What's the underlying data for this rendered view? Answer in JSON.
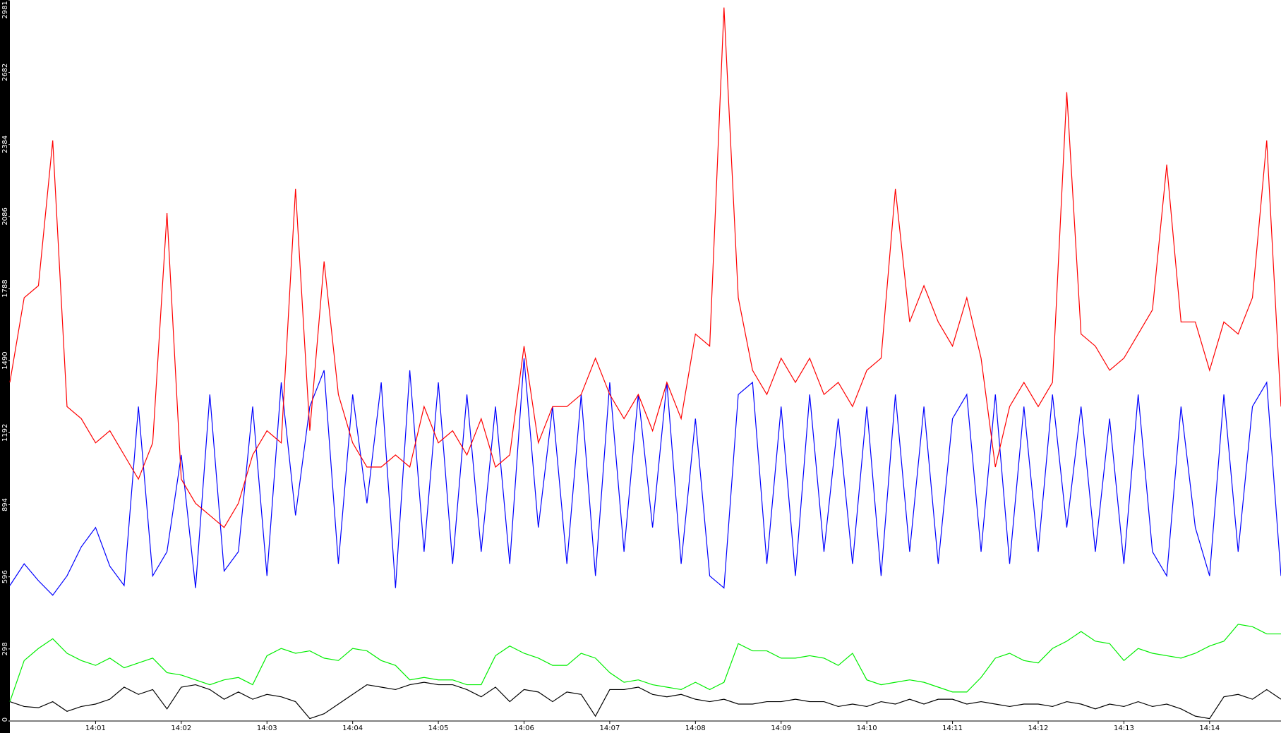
{
  "chart_data": {
    "type": "line",
    "x": [
      0,
      10,
      20,
      30,
      40,
      50,
      60,
      70,
      80,
      90,
      100,
      110,
      120,
      130,
      140,
      150,
      160,
      170,
      180,
      190,
      200,
      210,
      220,
      230,
      240,
      250,
      260,
      270,
      280,
      290,
      300,
      310,
      320,
      330,
      340,
      350,
      360,
      370,
      380,
      390,
      400,
      410,
      420,
      430,
      440,
      450,
      460,
      470,
      480,
      490,
      500,
      510,
      520,
      530,
      540,
      550,
      560,
      570,
      580,
      590,
      600,
      610,
      620,
      630,
      640,
      650,
      660,
      670,
      680,
      690,
      700,
      710,
      720,
      730,
      740,
      750,
      760,
      770,
      780,
      790,
      800,
      810,
      820,
      830,
      840,
      850,
      860,
      870,
      880,
      890
    ],
    "xlim": [
      0,
      890
    ],
    "xticks": [
      {
        "value": 60,
        "label": "14:01"
      },
      {
        "value": 120,
        "label": "14:02"
      },
      {
        "value": 180,
        "label": "14:03"
      },
      {
        "value": 240,
        "label": "14:04"
      },
      {
        "value": 300,
        "label": "14:05"
      },
      {
        "value": 360,
        "label": "14:06"
      },
      {
        "value": 420,
        "label": "14:07"
      },
      {
        "value": 480,
        "label": "14:08"
      },
      {
        "value": 540,
        "label": "14:09"
      },
      {
        "value": 600,
        "label": "14:10"
      },
      {
        "value": 660,
        "label": "14:11"
      },
      {
        "value": 720,
        "label": "14:12"
      },
      {
        "value": 780,
        "label": "14:13"
      },
      {
        "value": 840,
        "label": "14:14"
      }
    ],
    "ylim": [
      0,
      2981
    ],
    "yticks": [
      0,
      298,
      596,
      894,
      1192,
      1490,
      1788,
      2086,
      2384,
      2682,
      2981
    ],
    "grid": false,
    "series": [
      {
        "color": "#ff0000",
        "values": [
          1400,
          1750,
          1800,
          2400,
          1300,
          1250,
          1150,
          1200,
          1100,
          1000,
          1150,
          2100,
          1000,
          900,
          850,
          800,
          900,
          1100,
          1200,
          1150,
          2200,
          1200,
          1900,
          1350,
          1150,
          1050,
          1050,
          1100,
          1050,
          1300,
          1150,
          1200,
          1100,
          1250,
          1050,
          1100,
          1550,
          1150,
          1300,
          1300,
          1350,
          1500,
          1350,
          1250,
          1350,
          1200,
          1400,
          1250,
          1600,
          1550,
          2950,
          1750,
          1450,
          1350,
          1500,
          1400,
          1500,
          1350,
          1400,
          1300,
          1450,
          1500,
          2200,
          1650,
          1800,
          1650,
          1550,
          1750,
          1500,
          1050,
          1300,
          1400,
          1300,
          1400,
          2600,
          1600,
          1550,
          1450,
          1500,
          1600,
          1700,
          2300,
          1650,
          1650,
          1450,
          1650,
          1600,
          1750,
          2400,
          1300
        ]
      },
      {
        "color": "#0000ff",
        "values": [
          560,
          650,
          580,
          520,
          600,
          720,
          800,
          640,
          560,
          1300,
          600,
          700,
          1100,
          550,
          1350,
          620,
          700,
          1300,
          600,
          1400,
          850,
          1300,
          1450,
          650,
          1350,
          900,
          1400,
          550,
          1450,
          700,
          1400,
          650,
          1350,
          700,
          1300,
          650,
          1500,
          800,
          1300,
          650,
          1350,
          600,
          1400,
          700,
          1350,
          800,
          1400,
          650,
          1250,
          600,
          550,
          1350,
          1400,
          650,
          1300,
          600,
          1350,
          700,
          1250,
          650,
          1300,
          600,
          1350,
          700,
          1300,
          650,
          1250,
          1350,
          700,
          1350,
          650,
          1300,
          700,
          1350,
          800,
          1300,
          700,
          1250,
          650,
          1350,
          700,
          600,
          1300,
          800,
          600,
          1350,
          700,
          1300,
          1400,
          600
        ]
      },
      {
        "color": "#00ee00",
        "values": [
          80,
          250,
          300,
          340,
          280,
          250,
          230,
          260,
          220,
          240,
          260,
          200,
          190,
          170,
          150,
          170,
          180,
          150,
          270,
          300,
          280,
          290,
          260,
          250,
          300,
          290,
          250,
          230,
          170,
          180,
          170,
          170,
          150,
          150,
          270,
          310,
          280,
          260,
          230,
          230,
          280,
          260,
          200,
          160,
          170,
          150,
          140,
          130,
          160,
          130,
          160,
          320,
          290,
          290,
          260,
          260,
          270,
          260,
          230,
          280,
          170,
          150,
          160,
          170,
          160,
          140,
          120,
          120,
          180,
          260,
          280,
          250,
          240,
          300,
          330,
          370,
          330,
          320,
          250,
          300,
          280,
          270,
          260,
          280,
          310,
          330,
          400,
          390,
          360,
          360
        ]
      },
      {
        "color": "#000000",
        "values": [
          80,
          60,
          55,
          80,
          40,
          60,
          70,
          90,
          140,
          110,
          130,
          50,
          140,
          150,
          130,
          90,
          120,
          90,
          110,
          100,
          80,
          10,
          30,
          70,
          110,
          150,
          140,
          130,
          150,
          160,
          150,
          150,
          130,
          100,
          140,
          80,
          130,
          120,
          80,
          120,
          110,
          20,
          130,
          130,
          140,
          110,
          100,
          110,
          90,
          80,
          90,
          70,
          70,
          80,
          80,
          90,
          80,
          80,
          60,
          70,
          60,
          80,
          70,
          90,
          70,
          90,
          90,
          70,
          80,
          70,
          60,
          70,
          70,
          60,
          80,
          70,
          50,
          70,
          60,
          80,
          60,
          70,
          50,
          20,
          10,
          100,
          110,
          90,
          130,
          90
        ]
      }
    ]
  }
}
